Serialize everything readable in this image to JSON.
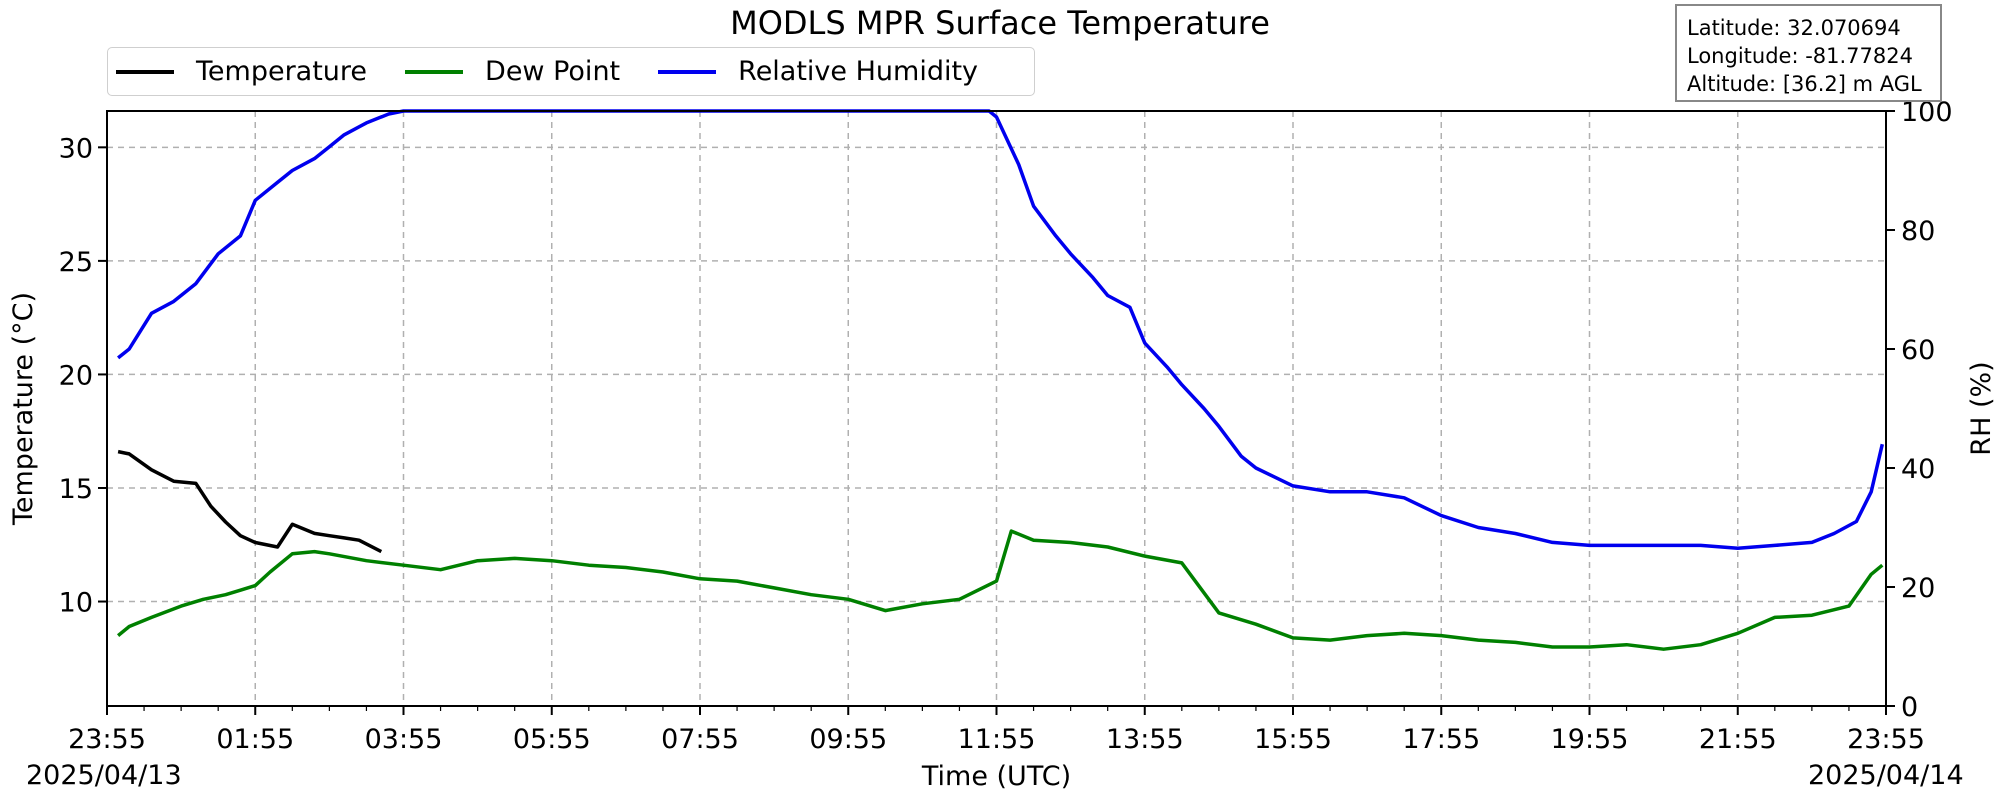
{
  "colors": {
    "temperature": "#000000",
    "dew_point": "#008000",
    "relative_humidity": "#0000ee",
    "grid": "#b0b0b0"
  },
  "info_box": {
    "latitude": "Latitude: 32.070694",
    "longitude": "Longitude: -81.77824",
    "altitude": "Altitude: [36.2] m AGL"
  },
  "dates": {
    "start": "2025/04/13",
    "end": "2025/04/14"
  },
  "chart_data": {
    "type": "line",
    "title": "MODLS MPR Surface Temperature",
    "xlabel": "Time (UTC)",
    "ylabel": "Temperature ($^\\circ$C)",
    "ylabel_display": "Temperature (°C)",
    "y2label": "RH (%)",
    "x_ticks": [
      "23:55",
      "01:55",
      "03:55",
      "05:55",
      "07:55",
      "09:55",
      "11:55",
      "13:55",
      "15:55",
      "17:55",
      "19:55",
      "21:55",
      "23:55"
    ],
    "x_tick_positions_hours": [
      0,
      2,
      4,
      6,
      8,
      10,
      12,
      14,
      16,
      18,
      20,
      22,
      24
    ],
    "x_unit": "hours after 2025/04/13 23:55 UTC",
    "y_ticks": [
      10,
      15,
      20,
      25,
      30
    ],
    "y_lim": [
      5.4,
      31.6
    ],
    "y2_ticks": [
      0,
      20,
      40,
      60,
      80,
      100
    ],
    "y2_lim": [
      0,
      100
    ],
    "grid": true,
    "legend_placement": "top-left (above plot)",
    "series": [
      {
        "name": "Temperature",
        "axis": "left",
        "color": "#000000",
        "x": [
          0.15,
          0.3,
          0.6,
          0.9,
          1.2,
          1.4,
          1.6,
          1.8,
          2.0,
          2.3,
          2.5,
          2.8,
          3.0,
          3.2,
          3.4,
          3.7
        ],
        "y": [
          16.6,
          16.5,
          15.8,
          15.3,
          15.2,
          14.2,
          13.5,
          12.9,
          12.6,
          12.4,
          13.4,
          13.0,
          12.9,
          12.8,
          12.7,
          12.2
        ]
      },
      {
        "name": "Dew Point",
        "axis": "left",
        "color": "#008000",
        "x": [
          0.15,
          0.3,
          0.6,
          1.0,
          1.3,
          1.6,
          1.8,
          2.0,
          2.2,
          2.5,
          2.8,
          3.0,
          3.5,
          4.0,
          4.5,
          5.0,
          5.5,
          6.0,
          6.5,
          7.0,
          7.5,
          8.0,
          8.5,
          9.0,
          9.5,
          10.0,
          10.5,
          11.0,
          11.5,
          12.0,
          12.2,
          12.5,
          13.0,
          13.5,
          14.0,
          14.5,
          15.0,
          15.5,
          16.0,
          16.5,
          17.0,
          17.5,
          18.0,
          18.5,
          19.0,
          19.5,
          20.0,
          20.5,
          21.0,
          21.5,
          22.0,
          22.5,
          23.0,
          23.5,
          23.8,
          23.95
        ],
        "y": [
          8.5,
          8.9,
          9.3,
          9.8,
          10.1,
          10.3,
          10.5,
          10.7,
          11.3,
          12.1,
          12.2,
          12.1,
          11.8,
          11.6,
          11.4,
          11.8,
          11.9,
          11.8,
          11.6,
          11.5,
          11.3,
          11.0,
          10.9,
          10.6,
          10.3,
          10.1,
          9.6,
          9.9,
          10.1,
          10.9,
          13.1,
          12.7,
          12.6,
          12.4,
          12.0,
          11.7,
          9.5,
          9.0,
          8.4,
          8.3,
          8.5,
          8.6,
          8.5,
          8.3,
          8.2,
          8.0,
          8.0,
          8.1,
          7.9,
          8.1,
          8.6,
          9.3,
          9.4,
          9.8,
          11.2,
          11.6
        ]
      },
      {
        "name": "Relative Humidity",
        "axis": "right",
        "color": "#0000ee",
        "x": [
          0.15,
          0.3,
          0.6,
          0.9,
          1.2,
          1.5,
          1.8,
          2.0,
          2.3,
          2.5,
          2.8,
          3.0,
          3.2,
          3.5,
          3.8,
          4.0,
          5.0,
          6.0,
          7.0,
          8.0,
          9.0,
          10.0,
          11.0,
          11.9,
          12.0,
          12.3,
          12.5,
          12.8,
          13.0,
          13.3,
          13.5,
          13.8,
          14.0,
          14.3,
          14.5,
          14.8,
          15.0,
          15.3,
          15.5,
          16.0,
          16.5,
          17.0,
          17.5,
          18.0,
          18.5,
          19.0,
          19.5,
          20.0,
          20.5,
          21.0,
          21.5,
          22.0,
          22.5,
          23.0,
          23.3,
          23.6,
          23.8,
          23.95
        ],
        "y": [
          58.5,
          60,
          66,
          68,
          71,
          76,
          79,
          85,
          88,
          90,
          92,
          94,
          96,
          98,
          99.5,
          100,
          100,
          100,
          100,
          100,
          100,
          100,
          100,
          100,
          99,
          91,
          84,
          79,
          76,
          72,
          69,
          67,
          61,
          57,
          54,
          50,
          47,
          42,
          40,
          37,
          36,
          36,
          35,
          32,
          30,
          29,
          27.5,
          27,
          27,
          27,
          27,
          26.5,
          27,
          27.5,
          29,
          31,
          36,
          44
        ]
      }
    ]
  }
}
